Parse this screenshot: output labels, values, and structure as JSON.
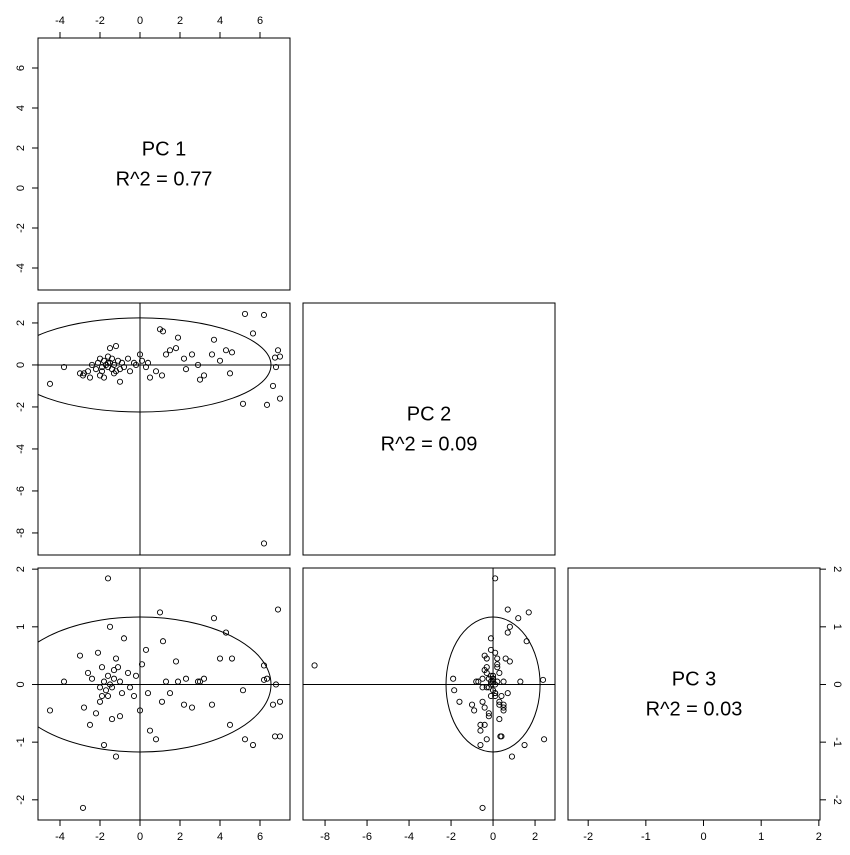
{
  "chart_data": {
    "type": "pairs",
    "variables": [
      "PC 1",
      "PC 2",
      "PC 3"
    ],
    "r2_labels": [
      "R^2 = 0.77",
      "R^2 = 0.09",
      "R^2 = 0.03"
    ],
    "lims": [
      [
        -5.1,
        7.5
      ],
      [
        -9.05,
        2.95
      ],
      [
        -2.35,
        2.02
      ]
    ],
    "ticks": [
      [
        -4,
        -2,
        0,
        2,
        4,
        6
      ],
      [
        -8,
        -6,
        -4,
        -2,
        0,
        2
      ],
      [
        -2,
        -1,
        0,
        1,
        2
      ]
    ],
    "ellipse_radius": [
      6.55,
      2.24,
      1.17
    ],
    "color": "#000000",
    "data": [
      [
        6.2,
        5.25,
        6.2,
        5.65,
        6.9,
        6.75,
        7.0,
        7.0,
        6.35,
        5.15,
        6.65,
        6.8,
        -1.6,
        -2.85,
        -4.5,
        -3.8,
        1.0,
        1.15,
        3.7,
        4.3,
        4.6,
        4.5,
        3.2,
        3.0,
        2.6,
        2.2,
        1.8,
        1.5,
        1.1,
        0.8,
        0.5,
        0.3,
        0.1,
        0.0,
        -0.3,
        -0.6,
        -0.9,
        -1.0,
        -1.2,
        -1.3,
        -1.4,
        -1.5,
        -1.6,
        -1.7,
        -1.8,
        -1.9,
        -2.0,
        -2.1,
        -2.2,
        -2.4,
        -2.6,
        -2.8,
        -3.0,
        -1.5,
        -1.2,
        -1.8,
        -1.0,
        -1.4,
        -2.5,
        -0.5,
        -0.2,
        0.4,
        -1.1,
        -1.6,
        -1.3,
        -2.0,
        2.9,
        3.6,
        1.9,
        4.0,
        2.3,
        1.3,
        -0.8,
        -1.9
      ],
      [
        -8.5,
        2.43,
        2.38,
        1.5,
        0.7,
        0.35,
        0.4,
        -1.6,
        -1.9,
        -1.85,
        -1.0,
        -0.1,
        0.1,
        -0.5,
        -0.9,
        -0.1,
        1.7,
        1.6,
        1.2,
        0.7,
        0.6,
        -0.4,
        -0.5,
        -0.7,
        0.5,
        0.3,
        0.8,
        0.7,
        -0.5,
        -0.3,
        -0.6,
        -0.1,
        0.2,
        0.5,
        0.1,
        0.3,
        0.1,
        -0.8,
        -0.3,
        0.0,
        -0.2,
        0.1,
        -0.1,
        0.0,
        0.2,
        -0.3,
        -0.5,
        0.1,
        -0.2,
        0.0,
        -0.3,
        -0.4,
        -0.4,
        0.8,
        0.9,
        -0.6,
        -0.2,
        0.3,
        -0.6,
        -0.3,
        0.0,
        0.1,
        0.2,
        0.4,
        -0.4,
        0.3,
        0.0,
        0.5,
        1.3,
        0.2,
        -0.2,
        0.5,
        -0.1,
        -0.1
      ],
      [
        0.33,
        -0.95,
        0.08,
        -1.05,
        1.3,
        -0.9,
        -0.9,
        -0.3,
        0.1,
        -0.1,
        -0.35,
        0.0,
        1.84,
        -2.14,
        -0.45,
        0.05,
        1.25,
        0.75,
        1.15,
        0.9,
        0.45,
        -0.7,
        0.1,
        0.05,
        -0.4,
        -0.35,
        0.4,
        -0.15,
        -0.3,
        -0.95,
        -0.8,
        0.6,
        0.35,
        -0.45,
        -0.2,
        0.2,
        -0.15,
        0.05,
        0.45,
        0.1,
        -0.05,
        0.0,
        0.15,
        -0.1,
        0.05,
        0.3,
        -0.05,
        0.55,
        -0.5,
        0.1,
        0.2,
        -0.4,
        0.5,
        1.0,
        -1.25,
        -1.05,
        -0.55,
        -0.6,
        -0.7,
        -0.05,
        0.15,
        -0.15,
        0.3,
        -0.2,
        0.25,
        -0.3,
        0.05,
        -0.35,
        0.05,
        0.45,
        0.1,
        0.05,
        0.8,
        -0.2
      ]
    ]
  }
}
